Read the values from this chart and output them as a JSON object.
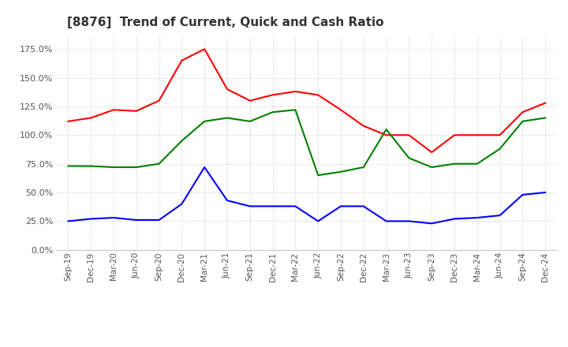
{
  "title": "[8876]  Trend of Current, Quick and Cash Ratio",
  "x_labels": [
    "Sep-19",
    "Dec-19",
    "Mar-20",
    "Jun-20",
    "Sep-20",
    "Dec-20",
    "Mar-21",
    "Jun-21",
    "Sep-21",
    "Dec-21",
    "Mar-22",
    "Jun-22",
    "Sep-22",
    "Dec-22",
    "Mar-23",
    "Jun-23",
    "Sep-23",
    "Dec-23",
    "Mar-24",
    "Jun-24",
    "Sep-24",
    "Dec-24"
  ],
  "current_ratio": [
    112,
    115,
    122,
    121,
    130,
    165,
    175,
    140,
    130,
    135,
    138,
    135,
    122,
    108,
    100,
    100,
    85,
    100,
    100,
    100,
    120,
    128
  ],
  "quick_ratio": [
    73,
    73,
    72,
    72,
    75,
    95,
    112,
    115,
    112,
    120,
    122,
    65,
    68,
    72,
    105,
    80,
    72,
    75,
    75,
    88,
    112,
    115
  ],
  "cash_ratio": [
    25,
    27,
    28,
    26,
    26,
    40,
    72,
    43,
    38,
    38,
    38,
    25,
    38,
    38,
    25,
    25,
    23,
    27,
    28,
    30,
    48,
    50
  ],
  "current_color": "#ff0000",
  "quick_color": "#008000",
  "cash_color": "#0000ff",
  "ylim": [
    0,
    187.5
  ],
  "yticks": [
    0,
    25,
    50,
    75,
    100,
    125,
    150,
    175
  ],
  "background_color": "#ffffff",
  "grid_color": "#c8c8c8"
}
